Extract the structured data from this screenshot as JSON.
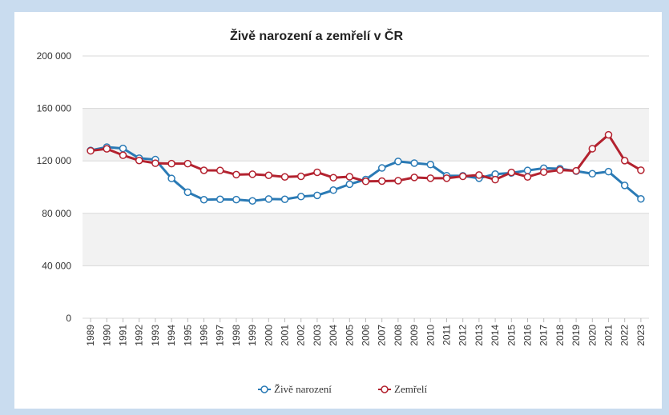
{
  "chart_data": {
    "type": "line",
    "title": "Živě narození a zemřelí v ČR",
    "categories": [
      "1989",
      "1990",
      "1991",
      "1992",
      "1993",
      "1994",
      "1995",
      "1996",
      "1997",
      "1998",
      "1999",
      "2000",
      "2001",
      "2002",
      "2003",
      "2004",
      "2005",
      "2006",
      "2007",
      "2008",
      "2009",
      "2010",
      "2011",
      "2012",
      "2013",
      "2014",
      "2015",
      "2016",
      "2017",
      "2018",
      "2019",
      "2020",
      "2021",
      "2022",
      "2023"
    ],
    "series": [
      {
        "name": "Živě narození",
        "color": "#2a7ab5",
        "values": [
          128000,
          130500,
          129500,
          122000,
          121000,
          106600,
          96100,
          90400,
          90700,
          90500,
          89500,
          90900,
          90700,
          92800,
          93700,
          97700,
          102200,
          105800,
          114600,
          119600,
          118300,
          117200,
          108700,
          108600,
          106800,
          109900,
          110800,
          112700,
          114400,
          114000,
          112200,
          110200,
          111800,
          101300,
          91000
        ]
      },
      {
        "name": "Zemřelí",
        "color": "#b3222f",
        "values": [
          127700,
          129200,
          124300,
          120300,
          118200,
          117900,
          117900,
          112800,
          112700,
          109500,
          109800,
          109000,
          107800,
          108200,
          111300,
          107200,
          107900,
          104400,
          104600,
          104900,
          107400,
          106800,
          106800,
          108200,
          109200,
          105700,
          111200,
          107800,
          111400,
          113000,
          112400,
          129300,
          139900,
          120200,
          112900
        ]
      }
    ],
    "ylim": [
      0,
      200000
    ],
    "yticks": [
      0,
      {
        "value": 40000,
        "label": "40 000"
      },
      {
        "value": 80000,
        "label": "80 000"
      },
      {
        "value": 120000,
        "label": "120 000"
      },
      {
        "value": 160000,
        "label": "160 000"
      },
      {
        "value": 200000,
        "label": "200 000"
      }
    ],
    "grid": true
  }
}
